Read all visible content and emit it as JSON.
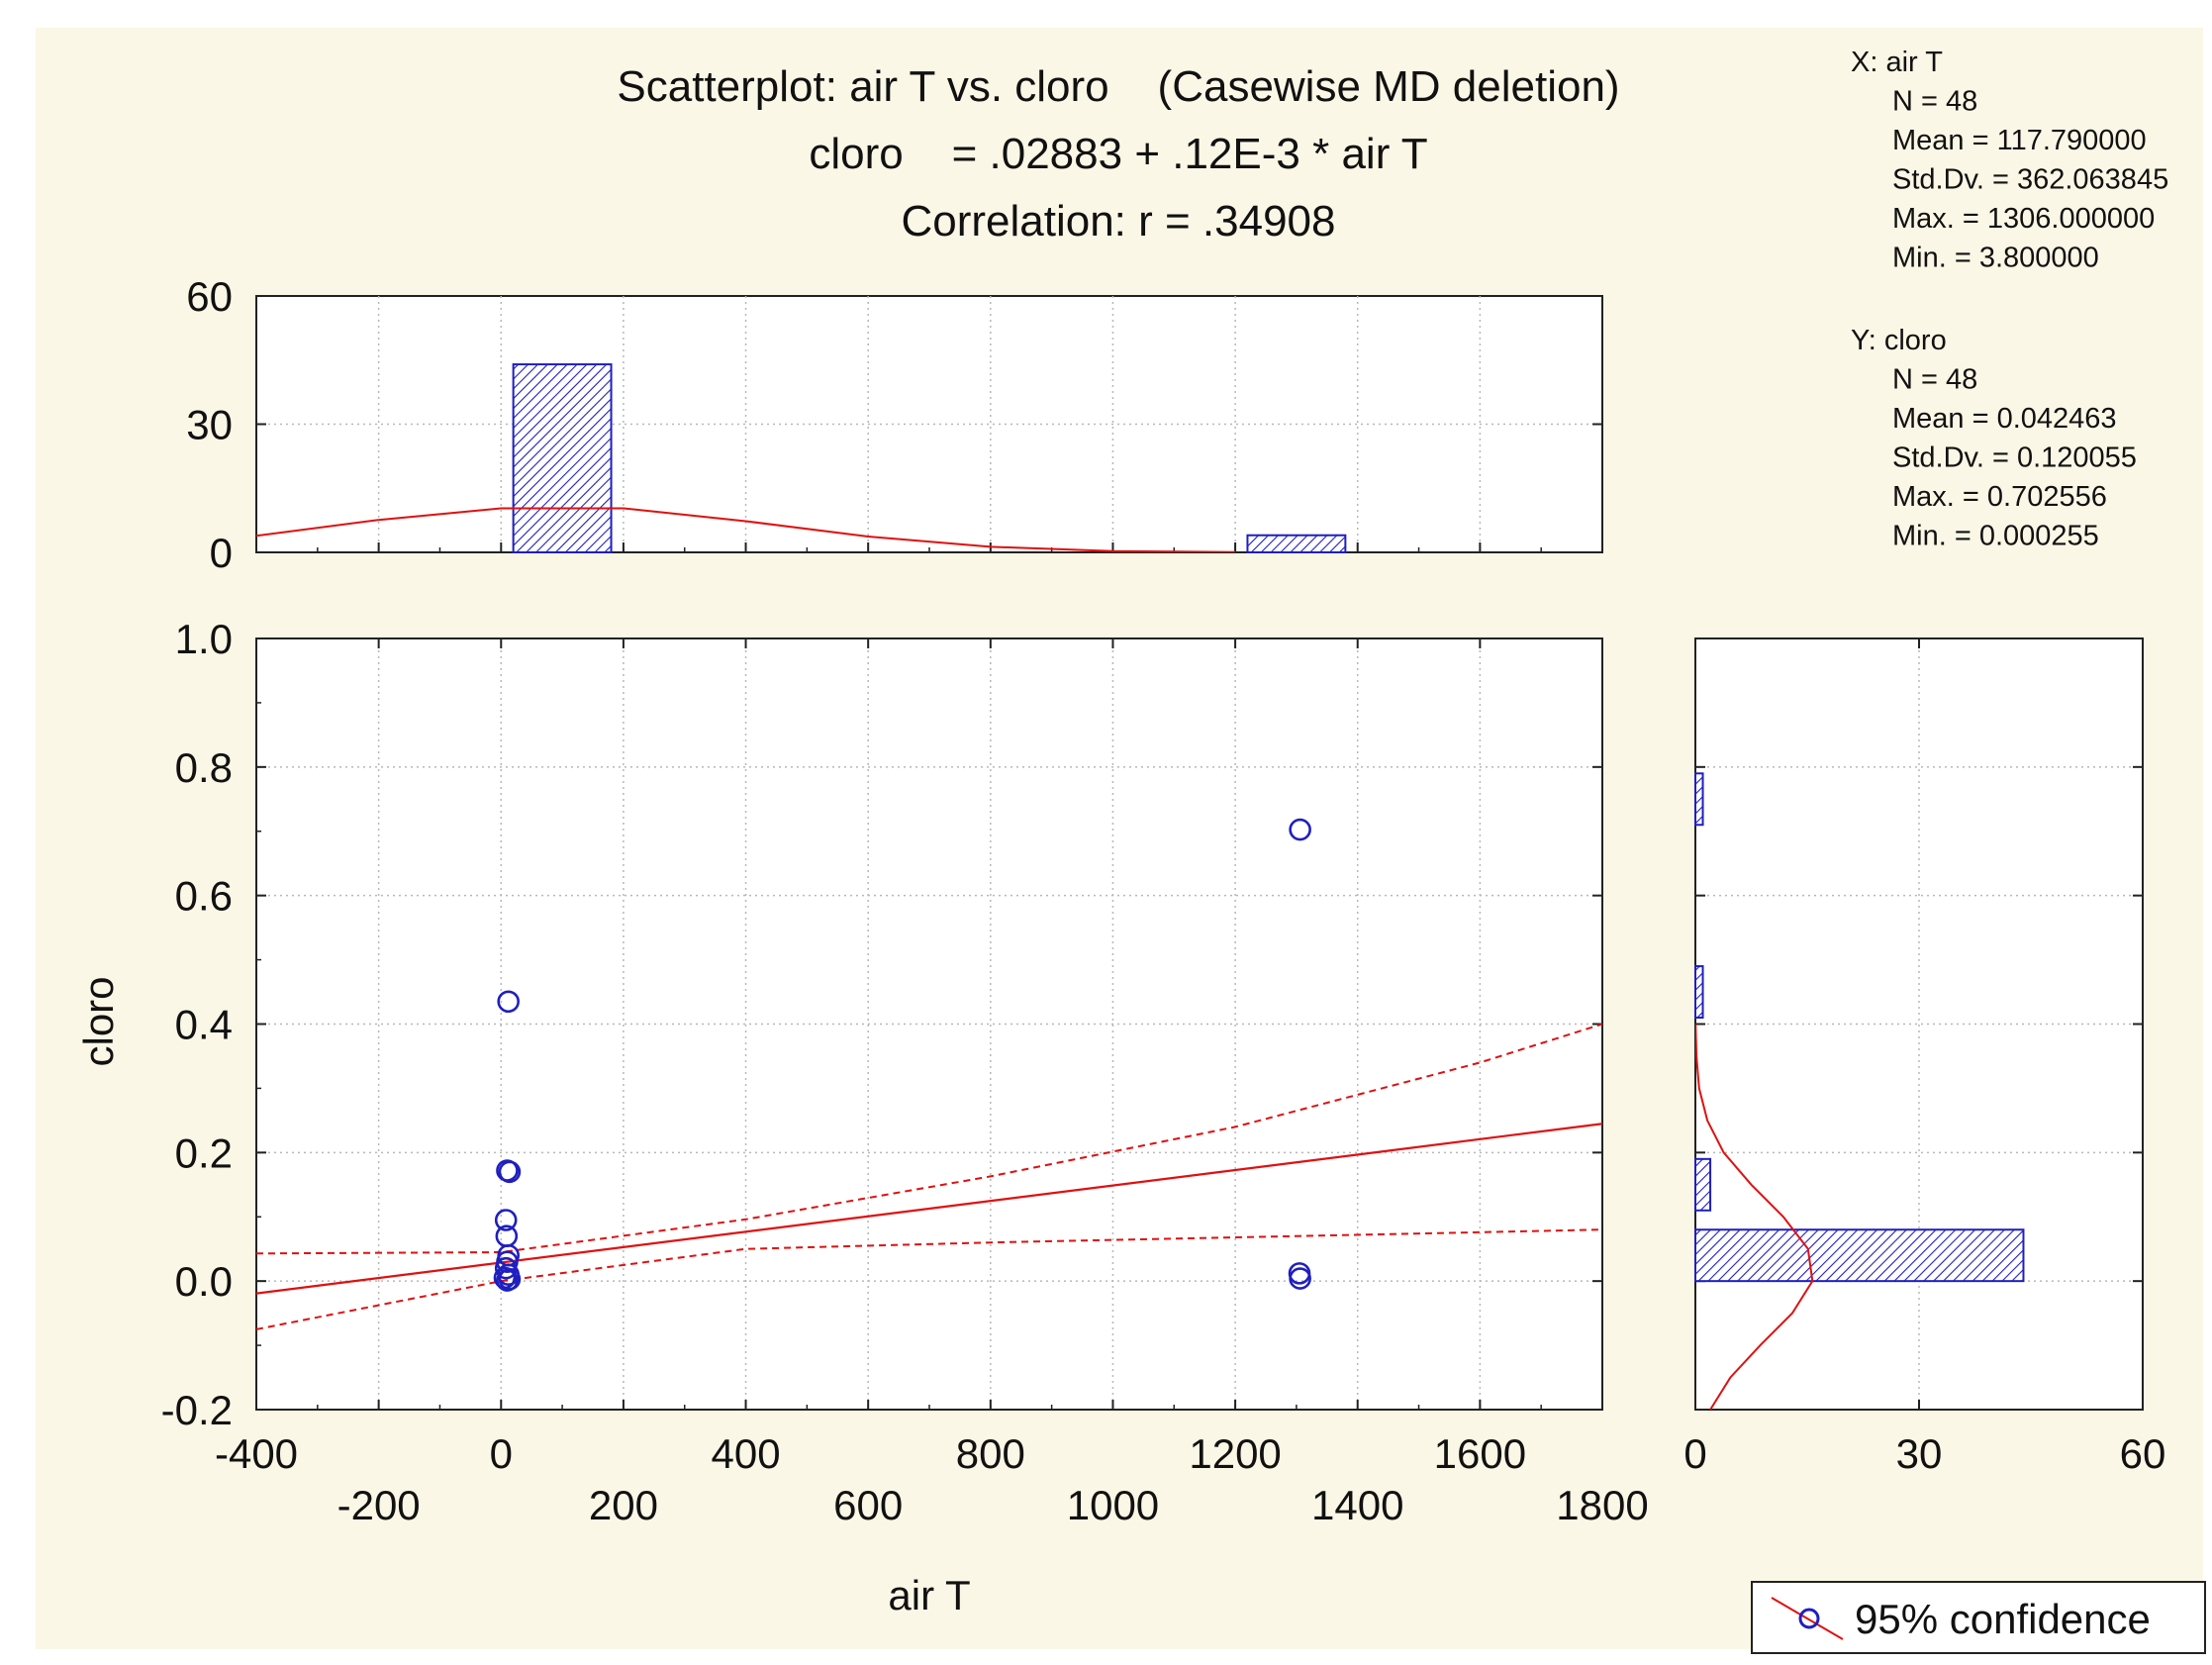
{
  "chart_data": {
    "type": "scatter",
    "title": "Scatterplot: air T vs. cloro    (Casewise MD deletion)",
    "equation": "cloro    = .02883 + .12E-3 * air T",
    "correlation_text": "Correlation: r = .34908",
    "xlabel": "air T",
    "ylabel": "cloro",
    "xlim": [
      -400,
      1800
    ],
    "ylim": [
      -0.2,
      1.0
    ],
    "x_ticks_upper": [
      "-400",
      "0",
      "400",
      "800",
      "1200",
      "1600"
    ],
    "x_ticks_upper_values": [
      -400,
      0,
      400,
      800,
      1200,
      1600
    ],
    "x_ticks_lower": [
      "-200",
      "200",
      "600",
      "1000",
      "1400",
      "1800"
    ],
    "x_ticks_lower_values": [
      -200,
      200,
      600,
      1000,
      1400,
      1800
    ],
    "y_ticks": [
      "-0.2",
      "0.0",
      "0.2",
      "0.4",
      "0.6",
      "0.8",
      "1.0"
    ],
    "y_tick_values": [
      -0.2,
      0.0,
      0.2,
      0.4,
      0.6,
      0.8,
      1.0
    ],
    "points": [
      {
        "x": 12,
        "y": 0.435
      },
      {
        "x": 10,
        "y": 0.172
      },
      {
        "x": 14,
        "y": 0.17
      },
      {
        "x": 8,
        "y": 0.095
      },
      {
        "x": 9,
        "y": 0.07
      },
      {
        "x": 12,
        "y": 0.04
      },
      {
        "x": 10,
        "y": 0.03
      },
      {
        "x": 8,
        "y": 0.02
      },
      {
        "x": 12,
        "y": 0.01
      },
      {
        "x": 6,
        "y": 0.005
      },
      {
        "x": 14,
        "y": 0.003
      },
      {
        "x": 10,
        "y": 0.001
      },
      {
        "x": 1306,
        "y": 0.7026
      },
      {
        "x": 1305,
        "y": 0.012
      },
      {
        "x": 1306,
        "y": 0.004
      }
    ],
    "regression": {
      "intercept": 0.02883,
      "slope": 0.00012
    },
    "confidence_band": {
      "x": [
        -400,
        0,
        400,
        800,
        1200,
        1600,
        1800
      ],
      "upper": [
        0.043,
        0.045,
        0.096,
        0.163,
        0.24,
        0.34,
        0.4
      ],
      "lower": [
        -0.075,
        0.0,
        0.05,
        0.06,
        0.068,
        0.076,
        0.08
      ]
    },
    "x_hist": {
      "y_ticks": [
        "0",
        "30",
        "60"
      ],
      "y_tick_values": [
        0,
        30,
        60
      ],
      "ylim": [
        0,
        60
      ],
      "bins": [
        {
          "from": 20,
          "to": 180,
          "count": 44
        },
        {
          "from": 1220,
          "to": 1380,
          "count": 4
        }
      ],
      "normal_curve": {
        "x": [
          -400,
          -200,
          0,
          200,
          400,
          600,
          800,
          1000,
          1200
        ],
        "y": [
          3.9,
          7.6,
          10.3,
          10.3,
          7.3,
          3.7,
          1.3,
          0.3,
          0.05
        ]
      }
    },
    "y_hist": {
      "x_ticks": [
        "0",
        "30",
        "60"
      ],
      "x_tick_values": [
        0,
        30,
        60
      ],
      "xlim": [
        0,
        60
      ],
      "bins": [
        {
          "from": 0.0,
          "to": 0.08,
          "count": 44
        },
        {
          "from": 0.11,
          "to": 0.19,
          "count": 2
        },
        {
          "from": 0.41,
          "to": 0.49,
          "count": 1
        },
        {
          "from": 0.71,
          "to": 0.79,
          "count": 1
        }
      ],
      "normal_curve": {
        "y": [
          -0.2,
          -0.15,
          -0.1,
          -0.05,
          0.0,
          0.05,
          0.1,
          0.15,
          0.2,
          0.25,
          0.3,
          0.35,
          0.4
        ],
        "count": [
          2.0,
          4.7,
          8.7,
          13.0,
          15.7,
          15.1,
          11.8,
          7.5,
          3.8,
          1.6,
          0.5,
          0.15,
          0.03
        ]
      }
    },
    "stats": {
      "x_header": "X:  air T",
      "x_lines": [
        "N = 48",
        "Mean = 117.790000",
        "Std.Dv. = 362.063845",
        "Max. = 1306.000000",
        "Min. = 3.800000"
      ],
      "y_header": "Y:  cloro",
      "y_lines": [
        "N = 48",
        "Mean = 0.042463",
        "Std.Dv. = 0.120055",
        "Max. = 0.702556",
        "Min. = 0.000255"
      ]
    },
    "legend": "95% confidence",
    "colors": {
      "points": "#1f1fbf",
      "fit": "#e01010",
      "bars": "#1f1fbf",
      "grid": "#b8b8b8"
    }
  }
}
